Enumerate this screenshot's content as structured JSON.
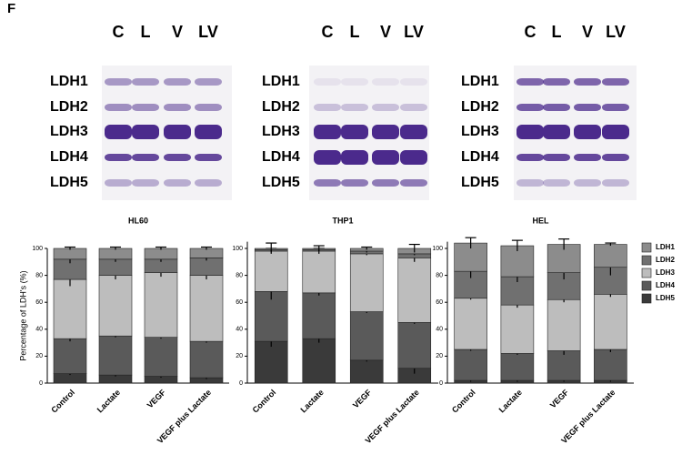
{
  "panel_label": "F",
  "gels": [
    {
      "lanes": [
        "C",
        "L",
        "V",
        "LV"
      ],
      "rows": [
        "LDH1",
        "LDH2",
        "LDH3",
        "LDH4",
        "LDH5"
      ]
    },
    {
      "lanes": [
        "C",
        "L",
        "V",
        "LV"
      ],
      "rows": [
        "LDH1",
        "LDH2",
        "LDH3",
        "LDH4",
        "LDH5"
      ]
    },
    {
      "lanes": [
        "C",
        "L",
        "V",
        "LV"
      ],
      "rows": [
        "LDH1",
        "LDH2",
        "LDH3",
        "LDH4",
        "LDH5"
      ]
    }
  ],
  "chart_data": [
    {
      "type": "bar",
      "stacked": true,
      "title": "HL60",
      "y_label": "Percentage of LDH's (%)",
      "categories": [
        "Control",
        "Lactate",
        "VEGF",
        "VEGF plus Lactate"
      ],
      "ylim": [
        0,
        100
      ],
      "yticks": [
        0,
        20,
        40,
        60,
        80,
        100
      ],
      "series": [
        {
          "color": "#8c8c8c",
          "values": [
            8,
            8,
            8,
            7
          ],
          "errors": [
            1,
            1,
            1,
            1
          ]
        },
        {
          "color": "#707070",
          "values": [
            15,
            12,
            10,
            13
          ],
          "errors": [
            3,
            2,
            2,
            2
          ]
        },
        {
          "color": "#bdbdbd",
          "values": [
            44,
            45,
            48,
            49
          ],
          "errors": [
            5,
            3,
            3,
            3
          ]
        },
        {
          "color": "#5a5a5a",
          "values": [
            26,
            29,
            29,
            27
          ],
          "errors": [
            2,
            1,
            1,
            1
          ]
        },
        {
          "color": "#3a3a3a",
          "values": [
            7,
            6,
            5,
            4
          ],
          "errors": [
            1,
            1,
            1,
            1
          ]
        }
      ]
    },
    {
      "type": "bar",
      "stacked": true,
      "title": "THP1",
      "categories": [
        "Control",
        "Lactate",
        "VEGF",
        "VEGF plus Lactate"
      ],
      "ylim": [
        0,
        105
      ],
      "yticks": [
        0,
        20,
        40,
        60,
        80,
        100
      ],
      "series": [
        {
          "color": "#8c8c8c",
          "values": [
            1,
            1,
            2,
            4
          ],
          "errors": [
            4,
            2,
            1,
            3
          ]
        },
        {
          "color": "#707070",
          "values": [
            1,
            1,
            2,
            3
          ],
          "errors": [
            1,
            1,
            1,
            1
          ]
        },
        {
          "color": "#bdbdbd",
          "values": [
            30,
            31,
            43,
            48
          ],
          "errors": [
            1,
            2,
            1,
            3
          ]
        },
        {
          "color": "#5a5a5a",
          "values": [
            37,
            34,
            36,
            34
          ],
          "errors": [
            6,
            2,
            1,
            1
          ]
        },
        {
          "color": "#3a3a3a",
          "values": [
            31,
            33,
            17,
            11
          ],
          "errors": [
            4,
            3,
            1,
            4
          ]
        }
      ]
    },
    {
      "type": "bar",
      "stacked": true,
      "title": "HEL",
      "categories": [
        "Control",
        "Lactate",
        "VEGF",
        "VEGF plus Lactate"
      ],
      "ylim": [
        0,
        105
      ],
      "yticks": [
        0,
        20,
        40,
        60,
        80,
        100
      ],
      "legend": "right",
      "series": [
        {
          "name": "LDH1",
          "color": "#8c8c8c",
          "values": [
            21,
            23,
            21,
            17
          ],
          "errors": [
            4,
            4,
            4,
            1
          ]
        },
        {
          "name": "LDH2",
          "color": "#707070",
          "values": [
            20,
            21,
            20,
            20
          ],
          "errors": [
            5,
            4,
            5,
            6
          ]
        },
        {
          "name": "LDH3",
          "color": "#bdbdbd",
          "values": [
            38,
            36,
            38,
            41
          ],
          "errors": [
            1,
            2,
            2,
            2
          ]
        },
        {
          "name": "LDH4",
          "color": "#5a5a5a",
          "values": [
            23,
            20,
            22,
            23
          ],
          "errors": [
            1,
            1,
            3,
            2
          ]
        },
        {
          "name": "LDH5",
          "color": "#3a3a3a",
          "values": [
            2,
            2,
            2,
            2
          ],
          "errors": [
            1,
            1,
            1,
            1
          ]
        }
      ]
    }
  ]
}
